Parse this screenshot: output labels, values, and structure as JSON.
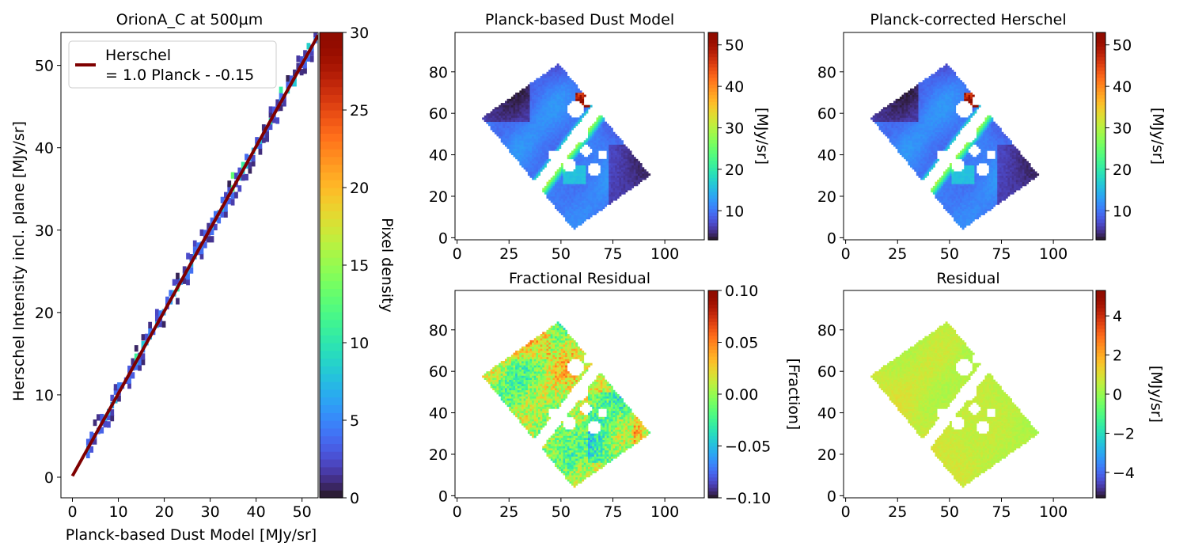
{
  "chart_data": [
    {
      "type": "heatmap",
      "title": "OrionA_C at 500µm",
      "xlabel": "Planck-based Dust Model [MJy/sr]",
      "ylabel": "Herschel Intensity incl. plane [MJy/sr]",
      "xlim": [
        -2.5,
        53.5
      ],
      "ylim": [
        -2.5,
        54
      ],
      "xticks": [
        0,
        10,
        20,
        30,
        40,
        50
      ],
      "yticks": [
        0,
        10,
        20,
        30,
        40,
        50
      ],
      "colorbar": {
        "label": "Pixel density",
        "range": [
          0,
          30
        ],
        "ticks": [
          0,
          5,
          10,
          15,
          20,
          25,
          30
        ],
        "cmap": "turbo"
      },
      "legend": {
        "placement": "upper-left",
        "line1": "Herschel",
        "line2": "= 1.0 Planck - -0.15",
        "color": "#7f0000"
      },
      "fit_line": {
        "slope": 1.0,
        "intercept": 0.15
      },
      "density_band": {
        "x_range": [
          3,
          53
        ],
        "note_values": "pixel density mostly 1-8"
      }
    },
    {
      "type": "heatmap",
      "title": "Planck-based Dust Model",
      "xlim": [
        -1,
        119
      ],
      "ylim": [
        -1,
        99
      ],
      "xticks": [
        0,
        25,
        50,
        75,
        100
      ],
      "yticks": [
        0,
        20,
        40,
        60,
        80
      ],
      "colorbar": {
        "label": "[MJy/sr]",
        "range": [
          3,
          53
        ],
        "ticks": [
          10,
          20,
          30,
          40,
          50
        ],
        "cmap": "turbo"
      },
      "map_kind": "intensity"
    },
    {
      "type": "heatmap",
      "title": "Planck-corrected Herschel",
      "xlim": [
        -1,
        119
      ],
      "ylim": [
        -1,
        99
      ],
      "xticks": [
        0,
        25,
        50,
        75,
        100
      ],
      "yticks": [
        0,
        20,
        40,
        60,
        80
      ],
      "colorbar": {
        "label": "[MJy/sr]",
        "range": [
          3,
          53
        ],
        "ticks": [
          10,
          20,
          30,
          40,
          50
        ],
        "cmap": "turbo"
      },
      "map_kind": "intensity"
    },
    {
      "type": "heatmap",
      "title": "Fractional Residual",
      "xlim": [
        -1,
        119
      ],
      "ylim": [
        -1,
        99
      ],
      "xticks": [
        0,
        25,
        50,
        75,
        100
      ],
      "yticks": [
        0,
        20,
        40,
        60,
        80
      ],
      "colorbar": {
        "label": "[Fraction]",
        "range": [
          -0.1,
          0.1
        ],
        "ticks": [
          -0.1,
          -0.05,
          0.0,
          0.05,
          0.1
        ],
        "tick_labels": [
          "−0.10",
          "−0.05",
          "0.00",
          "0.05",
          "0.10"
        ],
        "cmap": "turbo"
      },
      "map_kind": "fraction"
    },
    {
      "type": "heatmap",
      "title": "Residual",
      "xlim": [
        -1,
        119
      ],
      "ylim": [
        -1,
        99
      ],
      "xticks": [
        0,
        25,
        50,
        75,
        100
      ],
      "yticks": [
        0,
        20,
        40,
        60,
        80
      ],
      "colorbar": {
        "label": "[MJy/sr]",
        "range": [
          -5.3,
          5.3
        ],
        "ticks": [
          -4,
          -2,
          0,
          2,
          4
        ],
        "tick_labels": [
          "−4",
          "−2",
          "0",
          "2",
          "4"
        ],
        "cmap": "turbo"
      },
      "map_kind": "residual"
    }
  ]
}
